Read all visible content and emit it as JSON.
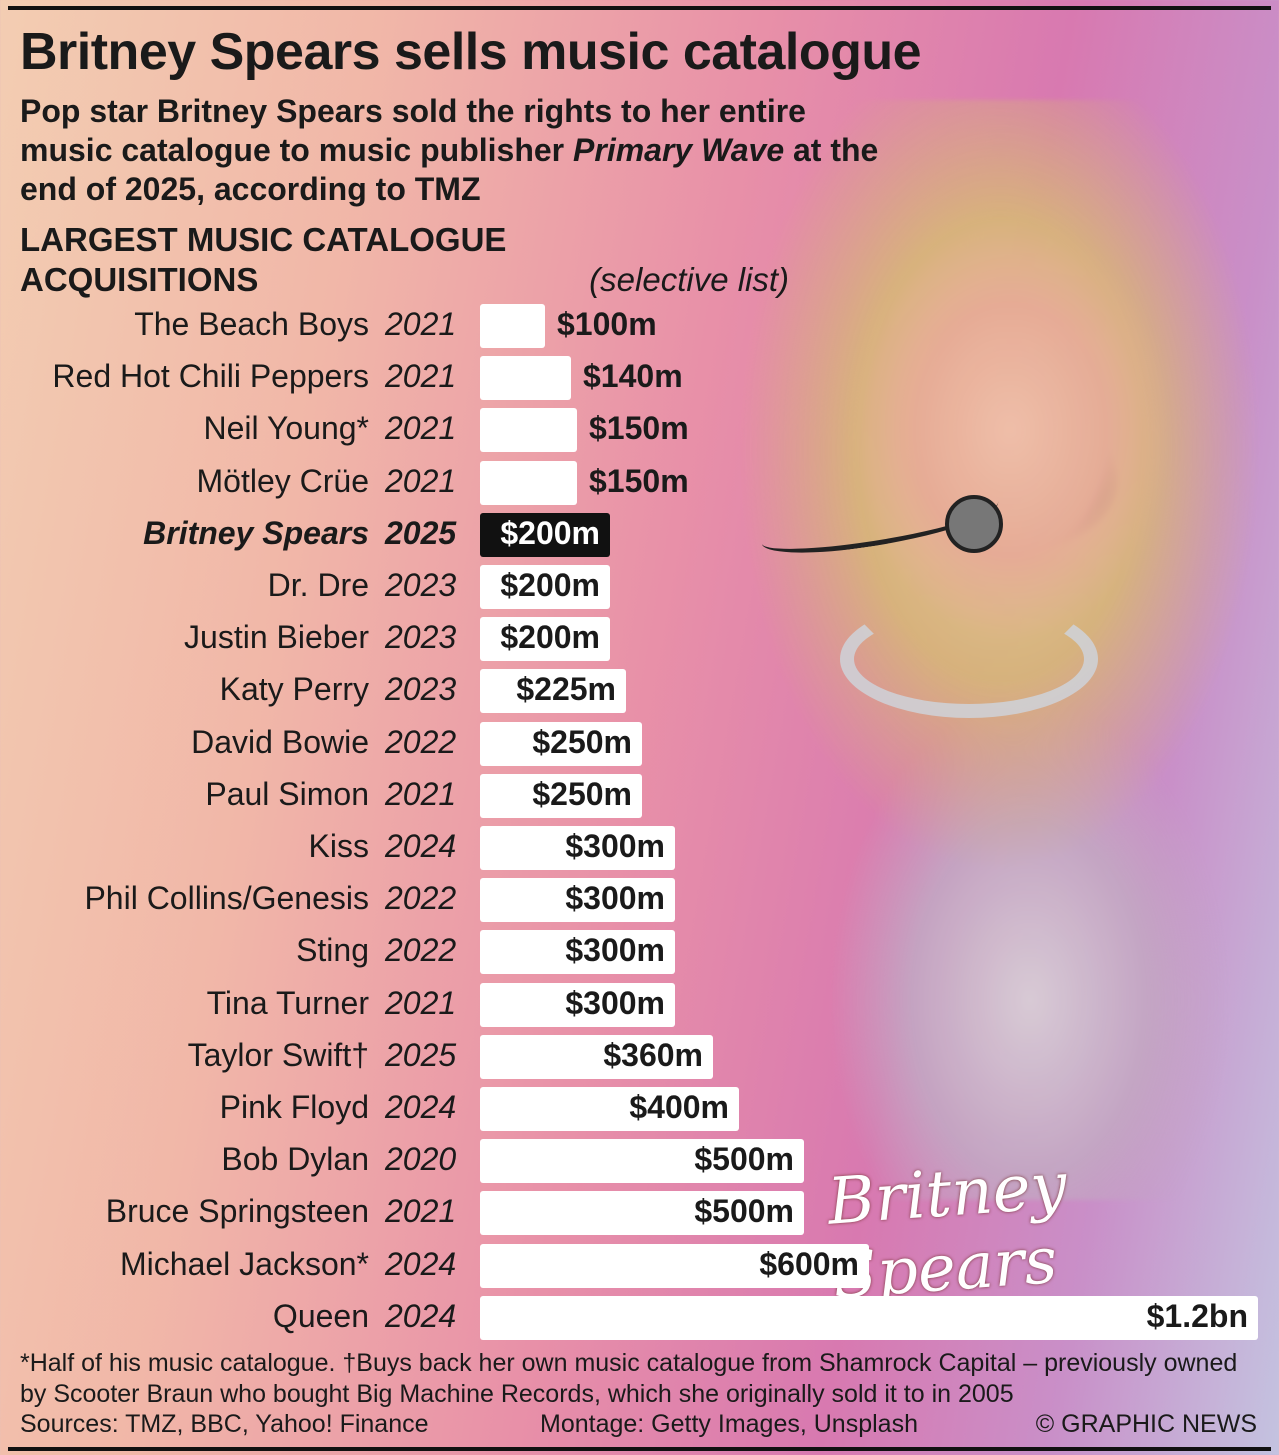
{
  "title": "Britney Spears sells music catalogue",
  "subtitle": {
    "before": "Pop star Britney Spears sold the rights to her entire music catalogue to music publisher ",
    "italic": "Primary Wave",
    "after": " at the end of 2025, according to TMZ"
  },
  "section": {
    "heading": "LARGEST MUSIC CATALOGUE ACQUISITIONS",
    "note": "(selective list)"
  },
  "chart_data": {
    "type": "bar",
    "orientation": "horizontal",
    "title": "LARGEST MUSIC CATALOGUE ACQUISITIONS (selective list)",
    "unit": "$m",
    "highlight_color": "#111111",
    "bar_color": "#ffffff",
    "rows": [
      {
        "name": "The Beach Boys",
        "year": "2021",
        "value": 100,
        "label": "$100m"
      },
      {
        "name": "Red Hot Chili Peppers",
        "year": "2021",
        "value": 140,
        "label": "$140m"
      },
      {
        "name": "Neil Young*",
        "year": "2021",
        "value": 150,
        "label": "$150m"
      },
      {
        "name": "Mötley Crüe",
        "year": "2021",
        "value": 150,
        "label": "$150m"
      },
      {
        "name": "Britney Spears",
        "year": "2025",
        "value": 200,
        "label": "$200m",
        "highlight": true
      },
      {
        "name": "Dr. Dre",
        "year": "2023",
        "value": 200,
        "label": "$200m"
      },
      {
        "name": "Justin Bieber",
        "year": "2023",
        "value": 200,
        "label": "$200m"
      },
      {
        "name": "Katy Perry",
        "year": "2023",
        "value": 225,
        "label": "$225m"
      },
      {
        "name": "David Bowie",
        "year": "2022",
        "value": 250,
        "label": "$250m"
      },
      {
        "name": "Paul Simon",
        "year": "2021",
        "value": 250,
        "label": "$250m"
      },
      {
        "name": "Kiss",
        "year": "2024",
        "value": 300,
        "label": "$300m"
      },
      {
        "name": "Phil Collins/Genesis",
        "year": "2022",
        "value": 300,
        "label": "$300m"
      },
      {
        "name": "Sting",
        "year": "2022",
        "value": 300,
        "label": "$300m"
      },
      {
        "name": "Tina Turner",
        "year": "2021",
        "value": 300,
        "label": "$300m"
      },
      {
        "name": "Taylor Swift†",
        "year": "2025",
        "value": 360,
        "label": "$360m"
      },
      {
        "name": "Pink Floyd",
        "year": "2024",
        "value": 400,
        "label": "$400m"
      },
      {
        "name": "Bob Dylan",
        "year": "2020",
        "value": 500,
        "label": "$500m"
      },
      {
        "name": "Bruce Springsteen",
        "year": "2021",
        "value": 500,
        "label": "$500m"
      },
      {
        "name": "Michael Jackson*",
        "year": "2024",
        "value": 600,
        "label": "$600m"
      },
      {
        "name": "Queen",
        "year": "2024",
        "value": 1200,
        "label": "$1.2bn"
      }
    ]
  },
  "signature": "Britney Spears",
  "footnote": "*Half of his music catalogue. †Buys back her own music catalogue from Shamrock Capital – previously owned by Scooter Braun who bought Big Machine Records, which she originally sold it to in 2005",
  "sources": "Sources: TMZ, BBC, Yahoo! Finance",
  "montage": "Montage: Getty Images, Unsplash",
  "credit": "© GRAPHIC NEWS"
}
